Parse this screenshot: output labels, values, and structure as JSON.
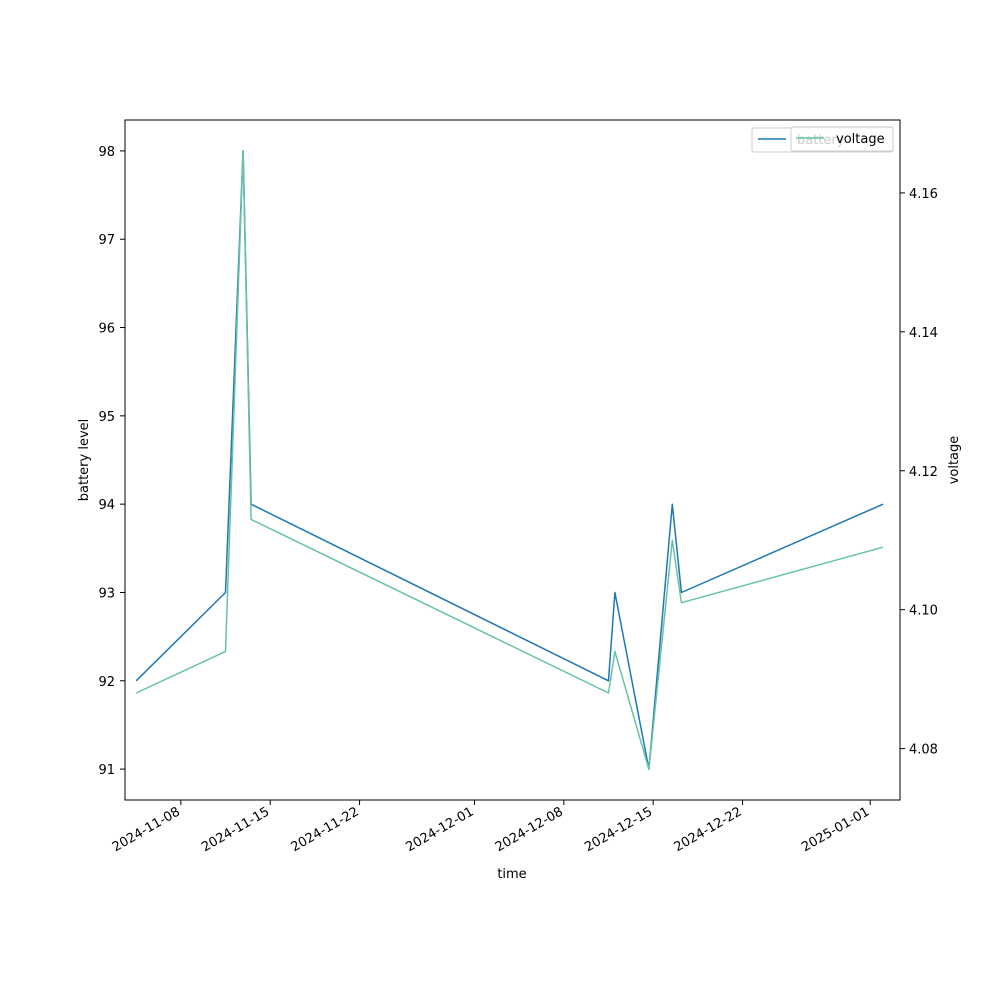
{
  "chart_data": {
    "type": "line",
    "xlabel": "time",
    "ylabel_left": "battery level",
    "ylabel_right": "voltage",
    "x_ticks": [
      "2024-11-08",
      "2024-11-15",
      "2024-11-22",
      "2024-12-01",
      "2024-12-08",
      "2024-12-15",
      "2024-12-22",
      "2025-01-01"
    ],
    "y_left_ticks": [
      91,
      92,
      93,
      94,
      95,
      96,
      97,
      98
    ],
    "y_right_ticks": [
      "4.08",
      "4.10",
      "4.12",
      "4.14",
      "4.16"
    ],
    "y_left_lim": [
      90.65,
      98.35
    ],
    "y_right_lim": [
      4.0726,
      4.1705
    ],
    "x_lim": [
      "2024-11-03T15:00",
      "2025-01-03T08:00"
    ],
    "colors": {
      "battery": "#1f77b4",
      "voltage": "#66c2a5"
    },
    "legend_placement": "upper-right",
    "series": [
      {
        "name": "battery",
        "axis": "left",
        "x": [
          "2024-11-04T12:00",
          "2024-11-11T12:00",
          "2024-11-12T21:00",
          "2024-11-13T12:00",
          "2024-12-11T12:00",
          "2024-12-12T00:00",
          "2024-12-14T16:00",
          "2024-12-16T12:00",
          "2024-12-17T05:00",
          "2025-01-02T00:00"
        ],
        "values": [
          92,
          93,
          98,
          94,
          92,
          93,
          91,
          94,
          93,
          94
        ]
      },
      {
        "name": "voltage",
        "axis": "right",
        "x": [
          "2024-11-04T12:00",
          "2024-11-11T12:00",
          "2024-11-12T21:00",
          "2024-11-13T12:00",
          "2024-12-11T12:00",
          "2024-12-12T00:00",
          "2024-12-14T16:00",
          "2024-12-16T12:00",
          "2024-12-17T05:00",
          "2025-01-02T00:00"
        ],
        "values": [
          4.088,
          4.094,
          4.166,
          4.113,
          4.088,
          4.094,
          4.077,
          4.11,
          4.101,
          4.109
        ]
      }
    ]
  }
}
